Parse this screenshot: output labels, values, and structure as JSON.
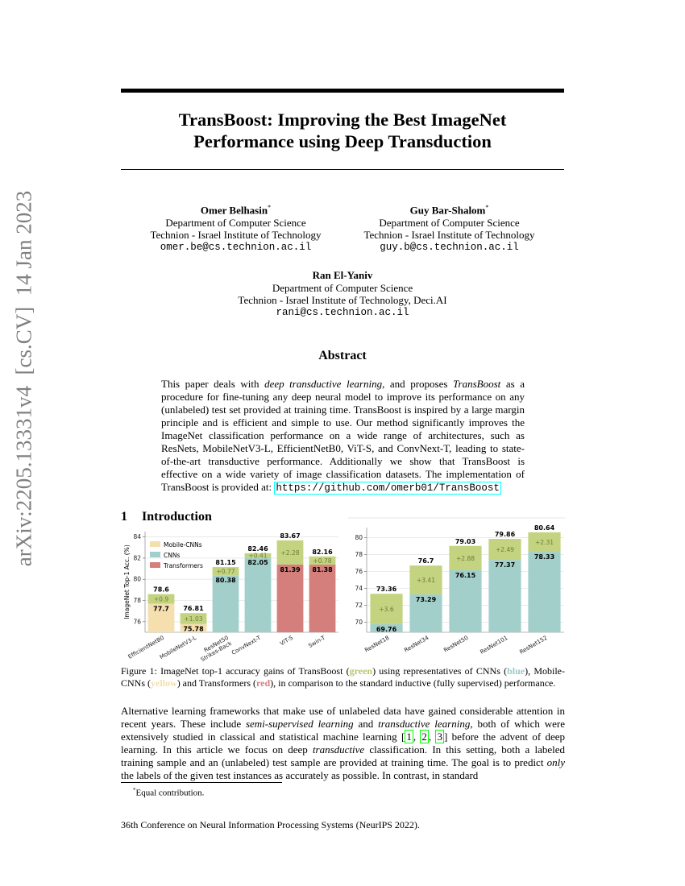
{
  "sidebar": "arXiv:2205.13331v4  [cs.CV]  14 Jan 2023",
  "title": [
    "TransBoost: Improving the Best ImageNet",
    "Performance using Deep Transduction"
  ],
  "authors": [
    {
      "name": "Omer Belhasin",
      "mark": "*",
      "dept": "Department of Computer Science",
      "inst": "Technion - Israel Institute of Technology",
      "email": "omer.be@cs.technion.ac.il"
    },
    {
      "name": "Guy Bar-Shalom",
      "mark": "*",
      "dept": "Department of Computer Science",
      "inst": "Technion - Israel Institute of Technology",
      "email": "guy.b@cs.technion.ac.il"
    },
    {
      "name": "Ran El-Yaniv",
      "dept": "Department of Computer Science",
      "inst": "Technion - Israel Institute of Technology, Deci.AI",
      "email": "rani@cs.technion.ac.il"
    }
  ],
  "abstract": {
    "heading": "Abstract",
    "parts": [
      "This paper deals with ",
      {
        "i": "deep transductive learning"
      },
      ", and proposes ",
      {
        "i": "TransBoost"
      },
      " as a procedure for fine-tuning any deep neural model to improve its performance on any (unlabeled) test set provided at training time.  TransBoost is inspired by a large margin principle and is efficient and simple to use. Our method significantly improves the ImageNet classification performance on a wide range of architectures, such as ResNets, MobileNetV3-L, EfficientNetB0, ViT-S, and ConvNext-T, leading to state-of-the-art transductive performance. Additionally we show that TransBoost is effective on a wide variety of image classification datasets. The implementation of TransBoost is provided at: ",
      {
        "url": "https://github.com/omerb01/TransBoost"
      }
    ]
  },
  "section": {
    "number": "1",
    "title": "Introduction"
  },
  "figure": {
    "charts": [
      {
        "type": "bar",
        "stacked": true,
        "ylabel": "ImageNet Top-1 Acc. (%)",
        "categories": [
          "EfficientNetB0",
          "MobileNetV3-L",
          [
            "ResNet50",
            "Strikes-Back"
          ],
          "ConvNext-T",
          "ViT-S",
          "Swin-T"
        ],
        "base": {
          "values": [
            77.7,
            75.78,
            80.38,
            82.05,
            81.39,
            81.38
          ],
          "colors": [
            "#f5dfae",
            "#f5dfae",
            "#a3cfcb",
            "#a3cfcb",
            "#d47f7c",
            "#d47f7c"
          ]
        },
        "gain": {
          "values": [
            0.9,
            1.03,
            0.77,
            0.41,
            2.28,
            0.78
          ],
          "value_labels": [
            "+0.9",
            "+1.03",
            "+0.77",
            "+0.41",
            "+2.28",
            "+0.78"
          ],
          "color": "#c3d37f"
        },
        "totals": [
          78.6,
          76.81,
          81.15,
          82.46,
          83.67,
          82.16
        ],
        "legend": [
          {
            "name": "Mobile-CNNs",
            "color": "#f5dfae"
          },
          {
            "name": "CNNs",
            "color": "#a3cfcb"
          },
          {
            "name": "Transformers",
            "color": "#d47f7c"
          }
        ],
        "ylim": [
          75,
          84.5
        ],
        "yticks": [
          76,
          78,
          80,
          82,
          84
        ],
        "grid": true
      },
      {
        "type": "bar",
        "stacked": true,
        "categories": [
          "ResNet18",
          "ResNet34",
          "ResNet50",
          "ResNet101",
          "ResNet152"
        ],
        "base": {
          "values": [
            69.76,
            73.29,
            76.15,
            77.37,
            78.33
          ],
          "colors": [
            "#a3cfcb",
            "#a3cfcb",
            "#a3cfcb",
            "#a3cfcb",
            "#a3cfcb"
          ]
        },
        "gain": {
          "values": [
            3.6,
            3.41,
            2.88,
            2.49,
            2.31
          ],
          "value_labels": [
            "+3.6",
            "+3.41",
            "+2.88",
            "+2.49",
            "+2.31"
          ],
          "color": "#c3d37f"
        },
        "totals": [
          73.36,
          76.7,
          79.03,
          79.86,
          80.64
        ],
        "ylim": [
          68.8,
          81.2
        ],
        "yticks": [
          70,
          72,
          74,
          76,
          78,
          80
        ],
        "grid": true
      }
    ],
    "caption": {
      "parts": [
        "Figure 1: ImageNet top-1 accuracy gains of TransBoost (",
        {
          "b": "green",
          "color": "#b5c96a"
        },
        ") using representatives of CNNs (",
        {
          "b": "blue",
          "color": "#9ec9c9"
        },
        "), Mobile-CNNs (",
        {
          "b": "yellow",
          "color": "#f3dfa8"
        },
        ") and Transformers (",
        {
          "b": "red",
          "color": "#d58080"
        },
        "), in comparison to the standard inductive (fully supervised) performance."
      ]
    }
  },
  "body": {
    "parts": [
      "Alternative learning frameworks that make use of unlabeled data have gained considerable attention in recent years. These include ",
      {
        "i": "semi-supervised learning"
      },
      " and ",
      {
        "i": "transductive learning"
      },
      ", both of which were extensively studied in classical and statistical machine learning [",
      {
        "cite": "1"
      },
      ", ",
      {
        "cite": "2"
      },
      ", ",
      {
        "cite": "3"
      },
      "] before the advent of deep learning. In this article we focus on deep ",
      {
        "i": "transductive"
      },
      " classification. In this setting, both a labeled training sample and an (unlabeled) test sample are provided at training time. The goal is to predict ",
      {
        "i": "only"
      },
      " the labels of the given test instances as accurately as possible. In contrast, in standard"
    ]
  },
  "footnote": {
    "mark": "*",
    "text": "Equal contribution."
  },
  "footer": "36th Conference on Neural Information Processing Systems (NeurIPS 2022)."
}
